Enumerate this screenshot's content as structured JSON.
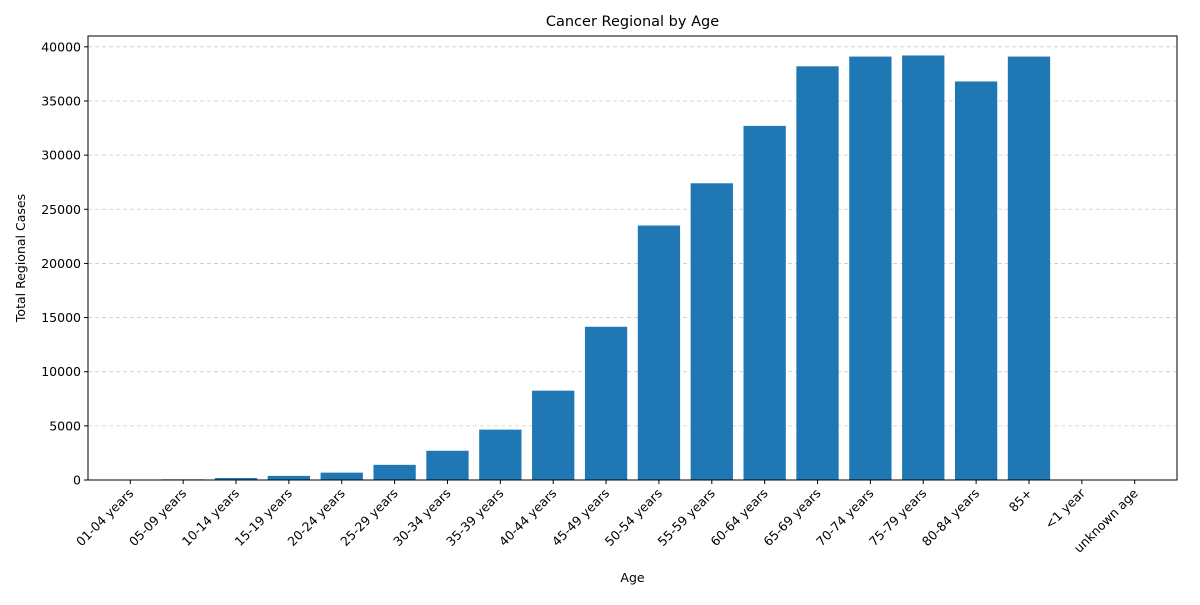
{
  "chart_data": {
    "type": "bar",
    "title": "Cancer Regional by Age",
    "xlabel": "Age",
    "ylabel": "Total Regional Cases",
    "categories": [
      "01-04 years",
      "05-09 years",
      "10-14 years",
      "15-19 years",
      "20-24 years",
      "25-29 years",
      "30-34 years",
      "35-39 years",
      "40-44 years",
      "45-49 years",
      "50-54 years",
      "55-59 years",
      "60-64 years",
      "65-69 years",
      "70-74 years",
      "75-79 years",
      "80-84 years",
      "85+",
      "<1 year",
      "unknown age"
    ],
    "values": [
      30,
      60,
      180,
      380,
      680,
      1400,
      2700,
      4650,
      8250,
      14150,
      23500,
      27400,
      32700,
      38200,
      39100,
      39200,
      36800,
      39100,
      5,
      0
    ],
    "ylim": [
      0,
      41000
    ],
    "yticks": [
      0,
      5000,
      10000,
      15000,
      20000,
      25000,
      30000,
      35000,
      40000
    ],
    "ytick_labels": [
      "0",
      "5000",
      "10000",
      "15000",
      "20000",
      "25000",
      "30000",
      "35000",
      "40000"
    ],
    "grid": "y-dashed",
    "bar_color": "#1f77b4"
  }
}
